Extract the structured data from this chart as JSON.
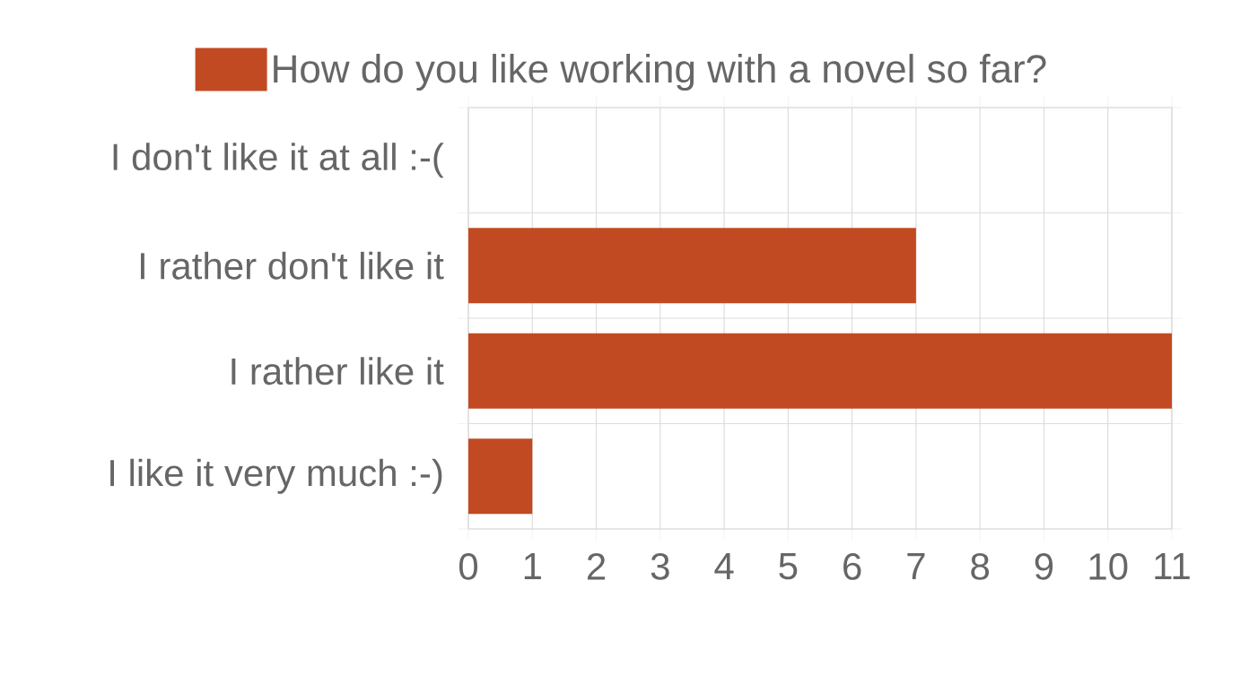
{
  "chart_data": {
    "type": "bar",
    "orientation": "horizontal",
    "categories": [
      "I don't like it at all :-(",
      "I rather don't like it",
      "I rather like it",
      "I like it very much :-)"
    ],
    "series": [
      {
        "name": "How do you like working with a novel so far?",
        "color": "#c24a22",
        "values": [
          0,
          7,
          11,
          1
        ]
      }
    ],
    "xlim": [
      0,
      11
    ],
    "xticks": [
      0,
      1,
      2,
      3,
      4,
      5,
      6,
      7,
      8,
      9,
      10,
      11
    ],
    "grid": true,
    "legend": "top"
  }
}
